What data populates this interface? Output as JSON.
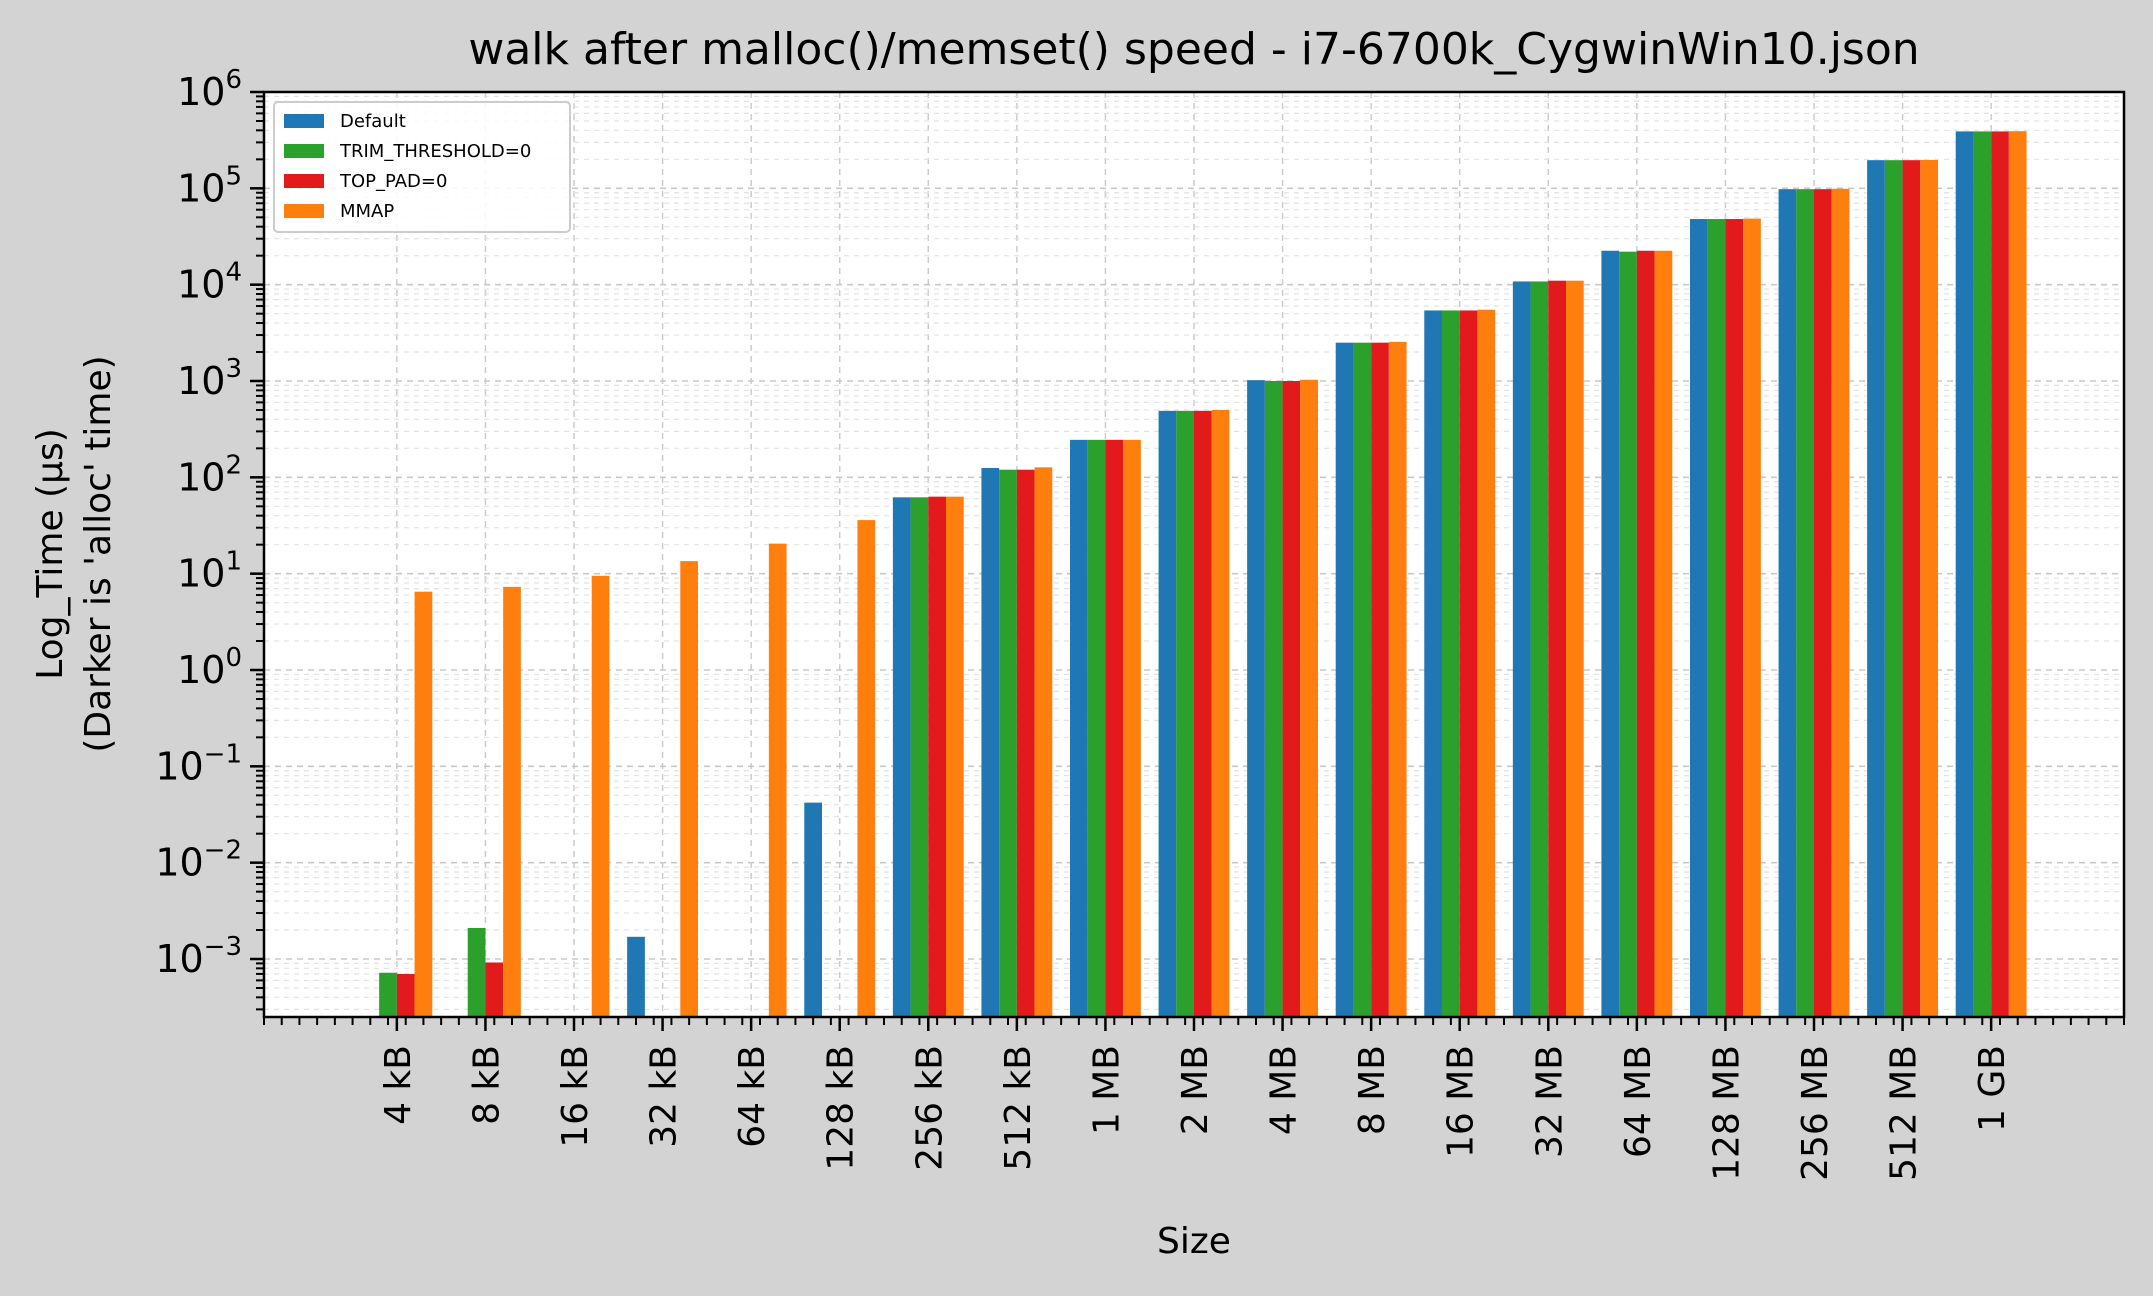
{
  "chart_data": {
    "type": "bar",
    "title": "walk after malloc()/memset() speed - i7-6700k_CygwinWin10.json",
    "xlabel": "Size",
    "ylabel_lines": [
      "Log_Time (µs)",
      "(Darker is 'alloc' time)"
    ],
    "yscale": "log",
    "ylim": [
      0.00025,
      1000000
    ],
    "y_ticks": [
      {
        "base": "10",
        "exp": "−3",
        "value": 0.001
      },
      {
        "base": "10",
        "exp": "−2",
        "value": 0.01
      },
      {
        "base": "10",
        "exp": "−1",
        "value": 0.1
      },
      {
        "base": "10",
        "exp": "0",
        "value": 1
      },
      {
        "base": "10",
        "exp": "1",
        "value": 10
      },
      {
        "base": "10",
        "exp": "2",
        "value": 100
      },
      {
        "base": "10",
        "exp": "3",
        "value": 1000
      },
      {
        "base": "10",
        "exp": "4",
        "value": 10000
      },
      {
        "base": "10",
        "exp": "5",
        "value": 100000
      },
      {
        "base": "10",
        "exp": "6",
        "value": 1000000
      }
    ],
    "grid": true,
    "legend_position": "top-left",
    "categories": [
      "4 kB",
      "8 kB",
      "16 kB",
      "32 kB",
      "64 kB",
      "128 kB",
      "256 kB",
      "512 kB",
      "1 MB",
      "2 MB",
      "4 MB",
      "8 MB",
      "16 MB",
      "32 MB",
      "64 MB",
      "128 MB",
      "256 MB",
      "512 MB",
      "1 GB"
    ],
    "series": [
      {
        "name": "Default",
        "color": "#1f77b4",
        "values": [
          null,
          null,
          null,
          0.0017,
          null,
          0.042,
          62,
          125,
          245,
          490,
          1020,
          2500,
          5400,
          10800,
          22500,
          48000,
          98000,
          196000,
          390000
        ]
      },
      {
        "name": "TRIM_THRESHOLD=0",
        "color": "#2ca02c",
        "values": [
          0.00072,
          0.0021,
          null,
          null,
          null,
          null,
          62,
          120,
          245,
          490,
          1000,
          2500,
          5400,
          10800,
          22000,
          48000,
          98000,
          196000,
          390000
        ]
      },
      {
        "name": "TOP_PAD=0",
        "color": "#e31a1c",
        "values": [
          0.0007,
          0.00092,
          null,
          null,
          null,
          null,
          63,
          120,
          245,
          490,
          1000,
          2500,
          5400,
          11000,
          22500,
          48000,
          98000,
          196000,
          390000
        ]
      },
      {
        "name": "MMAP",
        "color": "#ff7f0e",
        "values": [
          6.5,
          7.3,
          9.5,
          13.5,
          20.5,
          36,
          63,
          127,
          245,
          500,
          1030,
          2550,
          5500,
          11000,
          22500,
          48500,
          99000,
          197000,
          392000
        ]
      }
    ]
  }
}
